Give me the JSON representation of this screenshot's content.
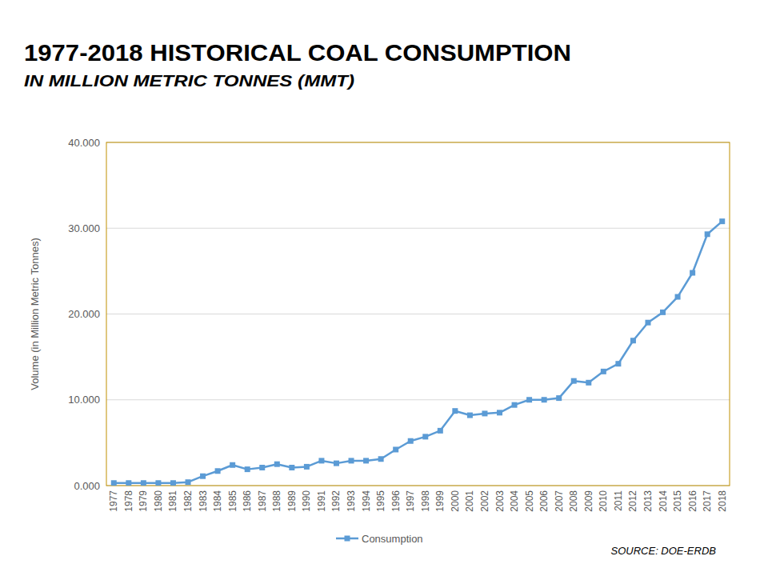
{
  "chart_data": {
    "type": "line",
    "title": "1977-2018 HISTORICAL COAL CONSUMPTION",
    "subtitle": "IN MILLION METRIC TONNES (MMT)",
    "y_label": "Volume (in Million Metric Tonnes)",
    "annotations": [
      "SOURCE: DOE-ERDB"
    ],
    "categories": [
      "1977",
      "1978",
      "1979",
      "1980",
      "1981",
      "1982",
      "1983",
      "1984",
      "1985",
      "1986",
      "1987",
      "1988",
      "1989",
      "1990",
      "1991",
      "1992",
      "1993",
      "1994",
      "1995",
      "1996",
      "1997",
      "1998",
      "1999",
      "2000",
      "2001",
      "2002",
      "2003",
      "2004",
      "2005",
      "2006",
      "2007",
      "2008",
      "2009",
      "2010",
      "2011",
      "2012",
      "2013",
      "2014",
      "2015",
      "2016",
      "2017",
      "2018"
    ],
    "series": [
      {
        "name": "Consumption",
        "color": "#5b9bd5",
        "marker": "square",
        "values": [
          0.3,
          0.3,
          0.3,
          0.3,
          0.3,
          0.4,
          1.1,
          1.7,
          2.4,
          1.9,
          2.1,
          2.5,
          2.1,
          2.2,
          2.9,
          2.6,
          2.9,
          2.9,
          3.1,
          4.2,
          5.2,
          5.7,
          6.4,
          8.7,
          8.2,
          8.4,
          8.5,
          9.4,
          10.0,
          10.0,
          10.2,
          12.2,
          12.0,
          13.3,
          14.2,
          16.9,
          19.0,
          20.2,
          22.0,
          24.8,
          29.3,
          30.8
        ]
      }
    ],
    "ylim": [
      0,
      40
    ],
    "yticks": [
      {
        "value": 0,
        "label": "0.000"
      },
      {
        "value": 10,
        "label": "10.000"
      },
      {
        "value": 20,
        "label": "20.000"
      },
      {
        "value": 30,
        "label": "30.000"
      },
      {
        "value": 40,
        "label": "40.000"
      }
    ],
    "grid": true,
    "legend": "bottom"
  }
}
